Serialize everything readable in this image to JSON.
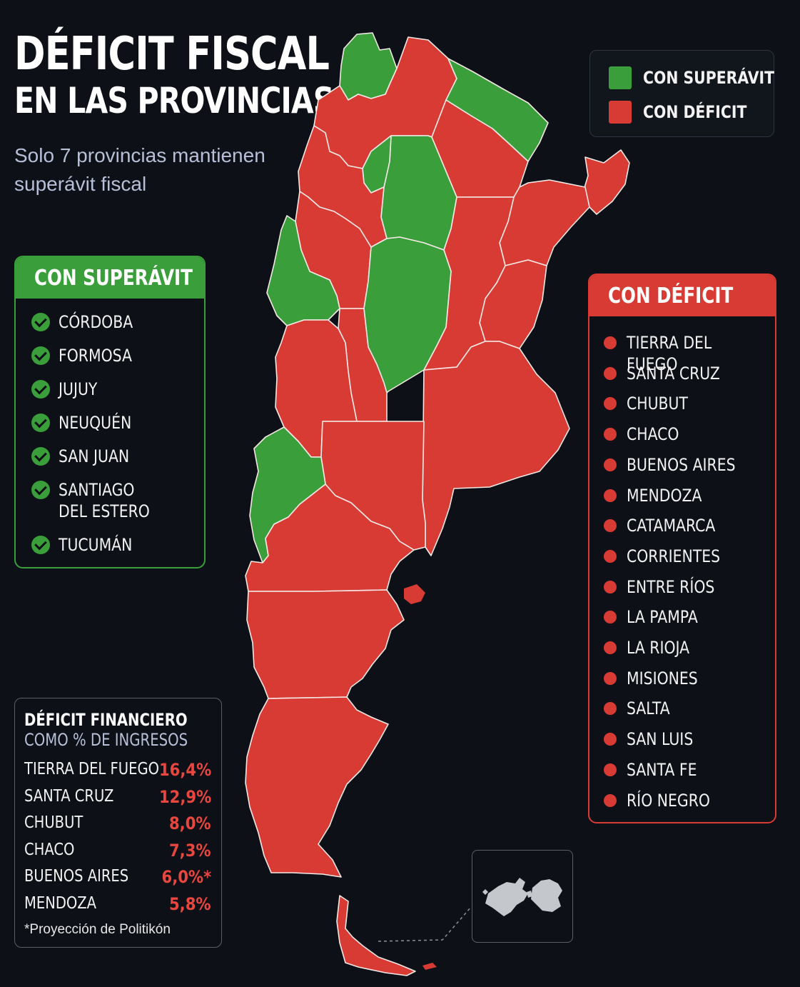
{
  "title": {
    "line1": "DÉFICIT FISCAL",
    "line2": "EN LAS PROVINCIAS"
  },
  "subtitle": "Solo 7 provincias mantienen superávit fiscal",
  "legend": {
    "surplus": {
      "label": "CON SUPERÁVIT",
      "color": "#3a9e3a"
    },
    "deficit": {
      "label": "CON DÉFICIT",
      "color": "#d83b34"
    }
  },
  "surplus_panel": {
    "title": "CON SUPERÁVIT",
    "items": [
      "CÓRDOBA",
      "FORMOSA",
      "JUJUY",
      "NEUQUÉN",
      "SAN JUAN",
      "SANTIAGO\nDEL ESTERO",
      "TUCUMÁN"
    ]
  },
  "deficit_panel": {
    "title": "CON DÉFICIT",
    "items": [
      "TIERRA DEL FUEGO",
      "SANTA CRUZ",
      "CHUBUT",
      "CHACO",
      "BUENOS AIRES",
      "MENDOZA",
      "CATAMARCA",
      "CORRIENTES",
      "ENTRE RÍOS",
      "LA PAMPA",
      "LA RIOJA",
      "MISIONES",
      "SALTA",
      "SAN LUIS",
      "SANTA FE",
      "RÍO NEGRO"
    ]
  },
  "financial_deficit": {
    "title": "DÉFICIT FINANCIERO",
    "subtitle": "COMO % DE INGRESOS",
    "rows": [
      {
        "name": "TIERRA DEL FUEGO",
        "value": "16,4%"
      },
      {
        "name": "SANTA CRUZ",
        "value": "12,9%"
      },
      {
        "name": "CHUBUT",
        "value": "8,0%"
      },
      {
        "name": "CHACO",
        "value": "7,3%"
      },
      {
        "name": "BUENOS AIRES",
        "value": "6,0%*"
      },
      {
        "name": "MENDOZA",
        "value": "5,8%"
      }
    ],
    "footnote": "*Proyección de Politikón"
  },
  "map": {
    "provinces": [
      {
        "name": "Jujuy",
        "status": "surplus"
      },
      {
        "name": "Salta",
        "status": "deficit"
      },
      {
        "name": "Formosa",
        "status": "surplus"
      },
      {
        "name": "Chaco",
        "status": "deficit"
      },
      {
        "name": "Misiones",
        "status": "deficit"
      },
      {
        "name": "Corrientes",
        "status": "deficit"
      },
      {
        "name": "Entre Ríos",
        "status": "deficit"
      },
      {
        "name": "Santa Fe",
        "status": "deficit"
      },
      {
        "name": "Santiago del Estero",
        "status": "surplus"
      },
      {
        "name": "Tucumán",
        "status": "surplus"
      },
      {
        "name": "Catamarca",
        "status": "deficit"
      },
      {
        "name": "La Rioja",
        "status": "deficit"
      },
      {
        "name": "San Juan",
        "status": "surplus"
      },
      {
        "name": "Córdoba",
        "status": "surplus"
      },
      {
        "name": "San Luis",
        "status": "deficit"
      },
      {
        "name": "Mendoza",
        "status": "deficit"
      },
      {
        "name": "Buenos Aires",
        "status": "deficit"
      },
      {
        "name": "La Pampa",
        "status": "deficit"
      },
      {
        "name": "Neuquén",
        "status": "surplus"
      },
      {
        "name": "Río Negro",
        "status": "deficit"
      },
      {
        "name": "Chubut",
        "status": "deficit"
      },
      {
        "name": "Santa Cruz",
        "status": "deficit"
      },
      {
        "name": "Tierra del Fuego",
        "status": "deficit"
      }
    ]
  }
}
